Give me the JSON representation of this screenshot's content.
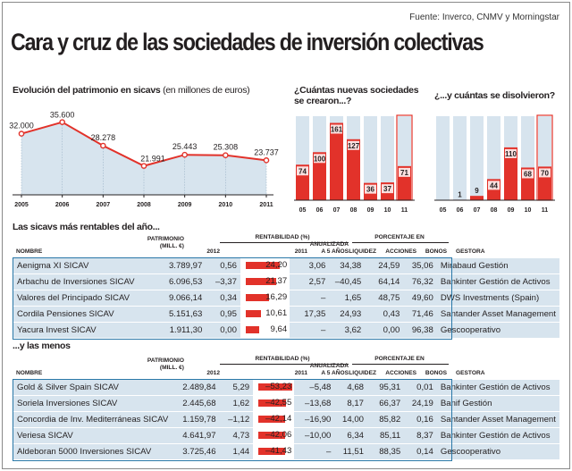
{
  "source": "Fuente: Inverco, CNMV y Morningstar",
  "title": "Cara y cruz de las sociedades de inversión colectivas",
  "sections": {
    "patrimonio_title": "Evolución del patrimonio en sicavs",
    "patrimonio_note": "(en millones de euros)",
    "nuevas_title_1": "¿Cuántas nuevas sociedades",
    "nuevas_title_2": "se crearon...?",
    "disueltas_title": "¿...y cuántas se disolvieron?",
    "rentables_title": "Las sicavs más rentables del año...",
    "menos_title": "...y las menos"
  },
  "colors": {
    "accent": "#e2322a",
    "area": "#d7e4ee",
    "highlight_border": "#2a78a8"
  },
  "chart_data": [
    {
      "type": "area",
      "title": "Evolución del patrimonio en sicavs",
      "subtitle": "(en millones de euros)",
      "x": [
        "2005",
        "2006",
        "2007",
        "2008",
        "2009",
        "2010",
        "2011"
      ],
      "values": [
        32000,
        35600,
        28278,
        21991,
        25443,
        25308,
        23737
      ],
      "labels": [
        "32.000",
        "35.600",
        "28.278",
        "21.991",
        "25.443",
        "25.308",
        "23.737"
      ],
      "grid": true
    },
    {
      "type": "bar",
      "title": "¿Cuántas nuevas sociedades se crearon...?",
      "categories": [
        "05",
        "06",
        "07",
        "08",
        "09",
        "10",
        "11"
      ],
      "values": [
        74,
        100,
        161,
        127,
        36,
        37,
        71
      ],
      "highlight": "11"
    },
    {
      "type": "bar",
      "title": "¿...y cuántas se disolvieron?",
      "categories": [
        "05",
        "06",
        "07",
        "08",
        "09",
        "10",
        "11"
      ],
      "values": [
        0,
        1,
        9,
        44,
        110,
        68,
        70
      ],
      "labels": [
        "",
        "1",
        "9",
        "44",
        "110",
        "68",
        "70"
      ],
      "highlight": "11"
    }
  ],
  "table_headers": {
    "nombre": "NOMBRE",
    "patrimonio": "PATRIMONIO\n(MILL. €)",
    "rentabilidad": "RENTABILIDAD (%)",
    "y2012": "2012",
    "y2011": "2011",
    "anualizada": "ANUALIZADA\nA 5 AÑOS",
    "porcentaje": "PORCENTAJE EN",
    "liquidez": "LIQUIDEZ",
    "acciones": "ACCIONES",
    "bonos": "BONOS",
    "gestora": "GESTORA"
  },
  "top_table": [
    {
      "nombre": "Aenigma XI SICAV",
      "patrimonio": "3.789,97",
      "r2012": "0,56",
      "r2011": "24,20",
      "r2011_value": 24.2,
      "anualizada": "3,06",
      "liquidez": "34,38",
      "acciones": "24,59",
      "bonos": "35,06",
      "gestora": "Mirabaud Gestión"
    },
    {
      "nombre": "Arbachu de Inversiones SICAV",
      "patrimonio": "6.096,53",
      "r2012": "–3,37",
      "r2011": "21,37",
      "r2011_value": 21.37,
      "anualizada": "2,57",
      "liquidez": "–40,45",
      "acciones": "64,14",
      "bonos": "76,32",
      "gestora": "Bankinter Gestión de Activos"
    },
    {
      "nombre": "Valores del Principado SICAV",
      "patrimonio": "9.066,14",
      "r2012": "0,34",
      "r2011": "16,29",
      "r2011_value": 16.29,
      "anualizada": "–",
      "liquidez": "1,65",
      "acciones": "48,75",
      "bonos": "49,60",
      "gestora": "DWS Investments (Spain)"
    },
    {
      "nombre": "Cordila Pensiones SICAV",
      "patrimonio": "5.151,63",
      "r2012": "0,95",
      "r2011": "10,61",
      "r2011_value": 10.61,
      "anualizada": "17,35",
      "liquidez": "24,93",
      "acciones": "0,43",
      "bonos": "71,46",
      "gestora": "Santander Asset Management"
    },
    {
      "nombre": "Yacura Invest SICAV",
      "patrimonio": "1.911,30",
      "r2012": "0,00",
      "r2011": "9,64",
      "r2011_value": 9.64,
      "anualizada": "–",
      "liquidez": "3,62",
      "acciones": "0,00",
      "bonos": "96,38",
      "gestora": "Gescooperativo"
    }
  ],
  "bottom_table": [
    {
      "nombre": "Gold & Silver Spain SICAV",
      "patrimonio": "2.489,84",
      "r2012": "5,29",
      "r2011": "–53,23",
      "r2011_value": -53.23,
      "anualizada": "–5,48",
      "liquidez": "4,68",
      "acciones": "95,31",
      "bonos": "0,01",
      "gestora": "Bankinter Gestión de Activos"
    },
    {
      "nombre": "Soriela Inversiones SICAV",
      "patrimonio": "2.445,68",
      "r2012": "1,62",
      "r2011": "–42,55",
      "r2011_value": -42.55,
      "anualizada": "–13,68",
      "liquidez": "8,17",
      "acciones": "66,37",
      "bonos": "24,19",
      "gestora": "Banif Gestión"
    },
    {
      "nombre": "Concordia de Inv. Mediterráneas SICAV",
      "patrimonio": "1.159,78",
      "r2012": "–1,12",
      "r2011": "–42,14",
      "r2011_value": -42.14,
      "anualizada": "–16,90",
      "liquidez": "14,00",
      "acciones": "85,82",
      "bonos": "0,16",
      "gestora": "Santander Asset Management"
    },
    {
      "nombre": "Veriesa SICAV",
      "patrimonio": "4.641,97",
      "r2012": "4,73",
      "r2011": "–42,06",
      "r2011_value": -42.06,
      "anualizada": "–10,00",
      "liquidez": "6,34",
      "acciones": "85,11",
      "bonos": "8,37",
      "gestora": "Bankinter Gestión de Activos"
    },
    {
      "nombre": "Aldeboran 5000 Inversiones SICAV",
      "patrimonio": "3.725,46",
      "r2012": "1,44",
      "r2011": "–41,43",
      "r2011_value": -41.43,
      "anualizada": "–",
      "liquidez": "11,51",
      "acciones": "88,35",
      "bonos": "0,14",
      "gestora": "Gescooperativo"
    }
  ]
}
